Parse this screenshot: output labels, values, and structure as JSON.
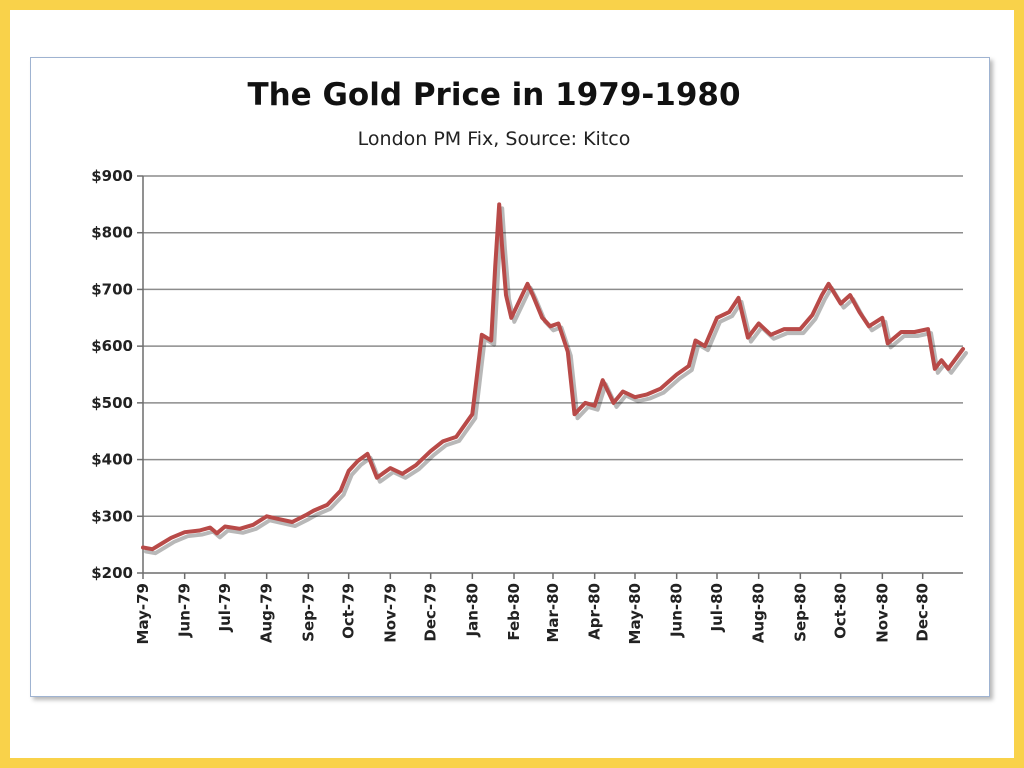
{
  "chart_data": {
    "type": "line",
    "title": "The Gold Price in 1979-1980",
    "subtitle": "London PM Fix, Source: Kitco",
    "xlabel": "",
    "ylabel": "",
    "ylim": [
      200,
      900
    ],
    "y_ticks": [
      "$200",
      "$300",
      "$400",
      "$500",
      "$600",
      "$700",
      "$800",
      "$900"
    ],
    "y_tick_values": [
      200,
      300,
      400,
      500,
      600,
      700,
      800,
      900
    ],
    "x_range": [
      "1979-05-01",
      "1980-12-31"
    ],
    "x_tick_labels": [
      "May-79",
      "Jun-79",
      "Jul-79",
      "Aug-79",
      "Sep-79",
      "Oct-79",
      "Nov-79",
      "Dec-79",
      "Jan-80",
      "Feb-80",
      "Mar-80",
      "Apr-80",
      "May-80",
      "Jun-80",
      "Jul-80",
      "Aug-80",
      "Sep-80",
      "Oct-80",
      "Nov-80",
      "Dec-80"
    ],
    "x_tick_dates": [
      "1979-05-01",
      "1979-06-01",
      "1979-07-01",
      "1979-08-01",
      "1979-09-01",
      "1979-10-01",
      "1979-11-01",
      "1979-12-01",
      "1980-01-01",
      "1980-02-01",
      "1980-03-01",
      "1980-04-01",
      "1980-05-01",
      "1980-06-01",
      "1980-07-01",
      "1980-08-01",
      "1980-09-01",
      "1980-10-01",
      "1980-11-01",
      "1980-12-01"
    ],
    "grid": true,
    "legend": "none",
    "series": [
      {
        "color": "#b84a48",
        "points": [
          [
            "1979-05-01",
            245
          ],
          [
            "1979-05-08",
            242
          ],
          [
            "1979-05-15",
            252
          ],
          [
            "1979-05-22",
            262
          ],
          [
            "1979-06-01",
            272
          ],
          [
            "1979-06-12",
            275
          ],
          [
            "1979-06-20",
            280
          ],
          [
            "1979-06-25",
            270
          ],
          [
            "1979-07-01",
            282
          ],
          [
            "1979-07-12",
            278
          ],
          [
            "1979-07-22",
            285
          ],
          [
            "1979-08-01",
            300
          ],
          [
            "1979-08-10",
            295
          ],
          [
            "1979-08-20",
            290
          ],
          [
            "1979-08-30",
            302
          ],
          [
            "1979-09-05",
            310
          ],
          [
            "1979-09-15",
            320
          ],
          [
            "1979-09-25",
            345
          ],
          [
            "1979-10-01",
            380
          ],
          [
            "1979-10-08",
            398
          ],
          [
            "1979-10-15",
            410
          ],
          [
            "1979-10-22",
            368
          ],
          [
            "1979-11-01",
            385
          ],
          [
            "1979-11-10",
            375
          ],
          [
            "1979-11-20",
            390
          ],
          [
            "1979-12-01",
            415
          ],
          [
            "1979-12-10",
            432
          ],
          [
            "1979-12-20",
            440
          ],
          [
            "1980-01-01",
            480
          ],
          [
            "1980-01-04",
            540
          ],
          [
            "1980-01-08",
            620
          ],
          [
            "1980-01-15",
            610
          ],
          [
            "1980-01-18",
            740
          ],
          [
            "1980-01-21",
            850
          ],
          [
            "1980-01-23",
            780
          ],
          [
            "1980-01-26",
            690
          ],
          [
            "1980-01-30",
            650
          ],
          [
            "1980-02-05",
            680
          ],
          [
            "1980-02-11",
            710
          ],
          [
            "1980-02-15",
            690
          ],
          [
            "1980-02-22",
            650
          ],
          [
            "1980-02-28",
            635
          ],
          [
            "1980-03-05",
            640
          ],
          [
            "1980-03-12",
            590
          ],
          [
            "1980-03-17",
            480
          ],
          [
            "1980-03-25",
            500
          ],
          [
            "1980-04-01",
            495
          ],
          [
            "1980-04-07",
            540
          ],
          [
            "1980-04-15",
            500
          ],
          [
            "1980-04-22",
            520
          ],
          [
            "1980-05-01",
            510
          ],
          [
            "1980-05-10",
            515
          ],
          [
            "1980-05-20",
            525
          ],
          [
            "1980-06-01",
            550
          ],
          [
            "1980-06-10",
            565
          ],
          [
            "1980-06-15",
            610
          ],
          [
            "1980-06-22",
            600
          ],
          [
            "1980-07-01",
            650
          ],
          [
            "1980-07-10",
            660
          ],
          [
            "1980-07-17",
            685
          ],
          [
            "1980-07-24",
            615
          ],
          [
            "1980-08-01",
            640
          ],
          [
            "1980-08-10",
            620
          ],
          [
            "1980-08-20",
            630
          ],
          [
            "1980-09-01",
            630
          ],
          [
            "1980-09-10",
            655
          ],
          [
            "1980-09-17",
            690
          ],
          [
            "1980-09-22",
            710
          ],
          [
            "1980-10-01",
            675
          ],
          [
            "1980-10-08",
            690
          ],
          [
            "1980-10-15",
            660
          ],
          [
            "1980-10-22",
            635
          ],
          [
            "1980-11-01",
            650
          ],
          [
            "1980-11-05",
            605
          ],
          [
            "1980-11-15",
            625
          ],
          [
            "1980-11-25",
            625
          ],
          [
            "1980-12-05",
            630
          ],
          [
            "1980-12-10",
            560
          ],
          [
            "1980-12-15",
            575
          ],
          [
            "1980-12-20",
            560
          ],
          [
            "1980-12-31",
            595
          ]
        ]
      }
    ]
  }
}
